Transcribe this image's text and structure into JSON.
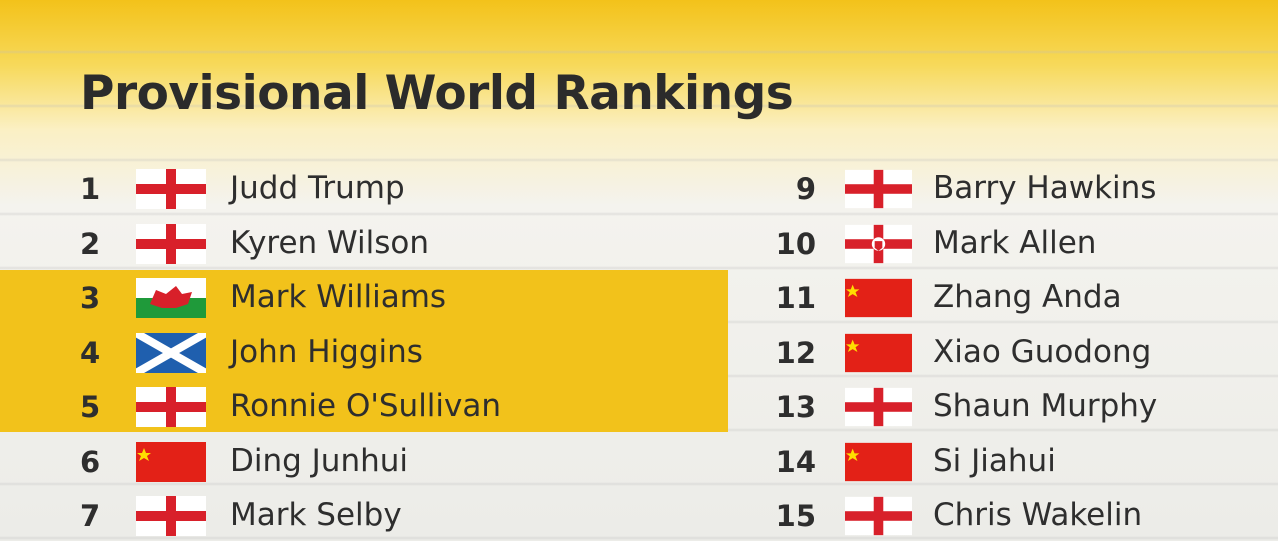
{
  "header": {
    "title": "Provisional World Rankings"
  },
  "table": {
    "rows": [
      [
        1,
        "Judd Trump"
      ],
      [
        2,
        "Kyren Wilson"
      ],
      [
        3,
        "Mark Williams"
      ],
      [
        4,
        "John Higgins"
      ],
      [
        5,
        "Ronnie O'Sullivan"
      ],
      [
        6,
        "Ding Junhui"
      ],
      [
        7,
        "Mark Selby"
      ],
      [
        9,
        "Barry Hawkins"
      ],
      [
        10,
        "Mark Allen"
      ],
      [
        11,
        "Zhang Anda"
      ],
      [
        12,
        "Xiao Guodong"
      ],
      [
        13,
        "Shaun Murphy"
      ],
      [
        14,
        "Si Jiahui"
      ],
      [
        15,
        "Chris Wakelin"
      ]
    ]
  }
}
